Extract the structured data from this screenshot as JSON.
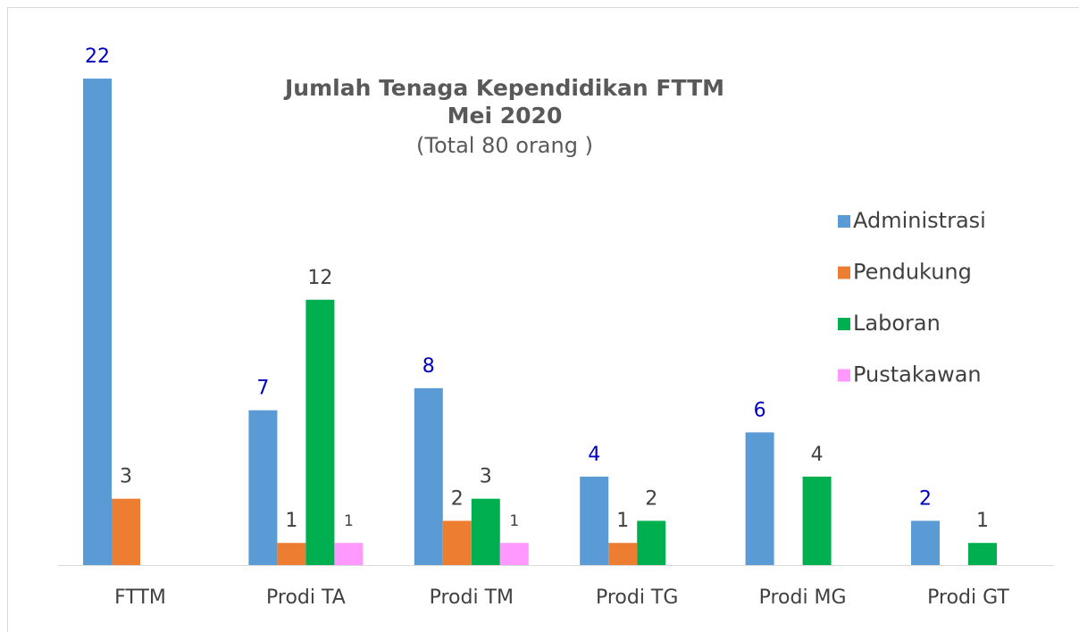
{
  "chart_data": {
    "type": "bar",
    "title": "Jumlah Tenaga Kependidikan FTTM",
    "subtitle": "Mei 2020",
    "note": "(Total 80 orang )",
    "categories": [
      "FTTM",
      "Prodi TA",
      "Prodi TM",
      "Prodi TG",
      "Prodi MG",
      "Prodi GT"
    ],
    "series": [
      {
        "name": "Administrasi",
        "color": "#5b9bd5",
        "label_color": "#0000c0",
        "values": [
          22,
          7,
          8,
          4,
          6,
          2
        ]
      },
      {
        "name": "Pendukung",
        "color": "#ed7d31",
        "label_color": "#404040",
        "values": [
          3,
          1,
          2,
          1,
          null,
          null
        ]
      },
      {
        "name": "Laboran",
        "color": "#00b050",
        "label_color": "#404040",
        "values": [
          null,
          12,
          3,
          2,
          4,
          1
        ]
      },
      {
        "name": "Pustakawan",
        "color": "#ff99ff",
        "label_color": "#404040",
        "values": [
          null,
          1,
          1,
          null,
          null,
          null
        ]
      }
    ],
    "legend": "right"
  }
}
